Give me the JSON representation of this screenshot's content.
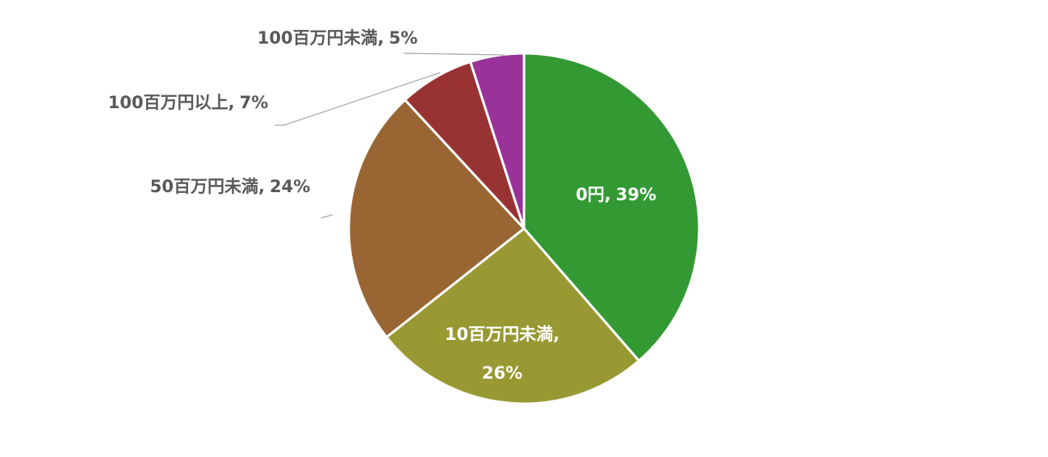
{
  "chart_data": {
    "type": "pie",
    "categories": [
      "0円,",
      "10百万円未満,",
      "50百万円未満,",
      "100百万円以上,",
      "100百万円未満,"
    ],
    "values": [
      39,
      26,
      24,
      7,
      5
    ],
    "value_labels": [
      "39%",
      "26%",
      "24%",
      "7%",
      "5%"
    ],
    "colors": [
      "#339933",
      "#999933",
      "#996633",
      "#993333",
      "#993399"
    ]
  }
}
